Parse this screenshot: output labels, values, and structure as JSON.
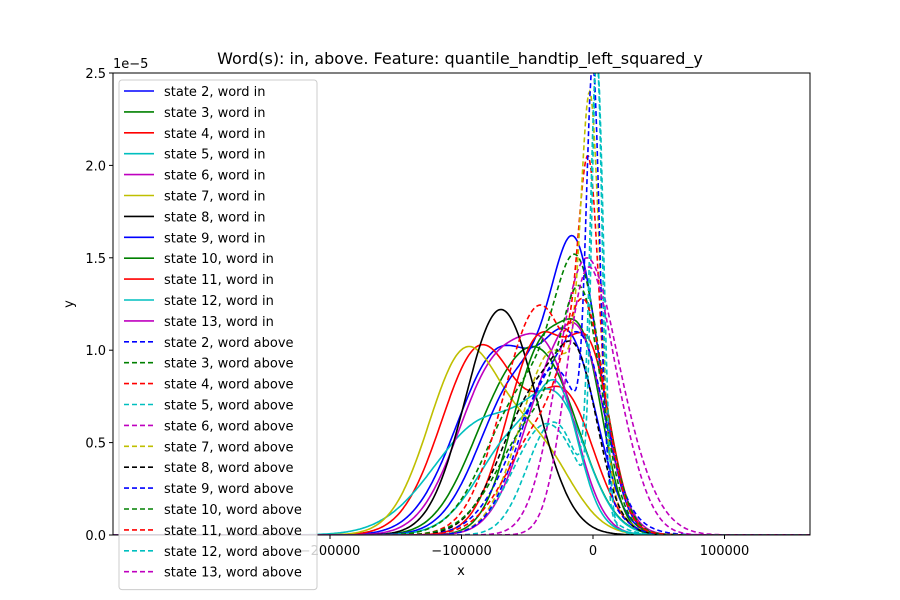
{
  "chart_data": {
    "type": "line",
    "title": "Word(s): in, above. Feature: quantile_handtip_left_squared_y",
    "xlabel": "x",
    "ylabel": "y",
    "y_offset_label": "1e−5",
    "xlim": [
      -365000,
      165000
    ],
    "ylim": [
      0,
      2.5
    ],
    "x_ticks": [
      -200000,
      -100000,
      0,
      100000
    ],
    "x_tick_labels": [
      "−200000",
      "−100000",
      "0",
      "100000"
    ],
    "y_ticks": [
      0,
      0.5,
      1.0,
      1.5,
      2.0,
      2.5
    ],
    "y_tick_labels": [
      "0.0",
      "0.5",
      "1.0",
      "1.5",
      "2.0",
      "2.5"
    ],
    "grid": false,
    "legend_position": "top-left",
    "series": [
      {
        "name": "state 2, word in",
        "color": "#0000ff",
        "dash": false,
        "components": [
          [
            0.55,
            -70000,
            33000
          ],
          [
            0.45,
            -15000,
            20000
          ]
        ],
        "peak": 1.12
      },
      {
        "name": "state 3, word in",
        "color": "#008000",
        "dash": false,
        "components": [
          [
            0.5,
            -68000,
            28000
          ],
          [
            0.5,
            -30000,
            25000
          ]
        ],
        "peak": 1.02
      },
      {
        "name": "state 4, word in",
        "color": "#ff0000",
        "dash": false,
        "components": [
          [
            0.6,
            -85000,
            30000
          ],
          [
            0.4,
            -20000,
            22000
          ]
        ],
        "peak": 1.03
      },
      {
        "name": "state 5, word in",
        "color": "#00bfbf",
        "dash": false,
        "components": [
          [
            0.55,
            -80000,
            40000
          ],
          [
            0.45,
            -25000,
            22000
          ]
        ],
        "peak": 0.79
      },
      {
        "name": "state 6, word in",
        "color": "#bf00bf",
        "dash": false,
        "components": [
          [
            0.6,
            -72000,
            30000
          ],
          [
            0.4,
            -30000,
            20000
          ]
        ],
        "peak": 1.09
      },
      {
        "name": "state 7, word in",
        "color": "#bfbf00",
        "dash": false,
        "components": [
          [
            0.7,
            -97000,
            28000
          ],
          [
            0.3,
            -40000,
            25000
          ]
        ],
        "peak": 1.02
      },
      {
        "name": "state 8, word in",
        "color": "#000000",
        "dash": false,
        "components": [
          [
            1.0,
            -70000,
            27000
          ]
        ],
        "peak": 1.22
      },
      {
        "name": "state 9, word in",
        "color": "#0000ff",
        "dash": false,
        "components": [
          [
            0.6,
            -12000,
            18000
          ],
          [
            0.4,
            -55000,
            30000
          ]
        ],
        "peak": 1.62
      },
      {
        "name": "state 10, word in",
        "color": "#008000",
        "dash": false,
        "components": [
          [
            0.6,
            -38000,
            23000
          ],
          [
            0.4,
            -5000,
            15000
          ]
        ],
        "peak": 1.17
      },
      {
        "name": "state 11, word in",
        "color": "#ff0000",
        "dash": false,
        "components": [
          [
            0.6,
            -40000,
            25000
          ],
          [
            0.4,
            0,
            15000
          ]
        ],
        "peak": 1.1
      },
      {
        "name": "state 12, word in",
        "color": "#00bfbf",
        "dash": false,
        "components": [
          [
            0.55,
            -55000,
            30000
          ],
          [
            0.45,
            -25000,
            15000
          ]
        ],
        "peak": 0.84
      },
      {
        "name": "state 13, word in",
        "color": "#bf00bf",
        "dash": false,
        "components": [
          [
            0.6,
            -30000,
            25000
          ],
          [
            0.4,
            -5000,
            18000
          ]
        ],
        "peak": 1.15
      },
      {
        "name": "state 2, word above",
        "color": "#0000ff",
        "dash": true,
        "components": [
          [
            0.65,
            -30000,
            30000
          ],
          [
            0.35,
            -5000,
            15000
          ]
        ],
        "peak": 1.1
      },
      {
        "name": "state 3, word above",
        "color": "#008000",
        "dash": true,
        "components": [
          [
            0.6,
            -10000,
            18000
          ],
          [
            0.4,
            -50000,
            30000
          ]
        ],
        "peak": 1.52
      },
      {
        "name": "state 4, word above",
        "color": "#ff0000",
        "dash": true,
        "components": [
          [
            0.55,
            -3000,
            8000
          ],
          [
            0.45,
            -40000,
            28000
          ]
        ],
        "peak": 2.05
      },
      {
        "name": "state 5, word above",
        "color": "#00bfbf",
        "dash": true,
        "components": [
          [
            0.8,
            3000,
            4000
          ],
          [
            0.2,
            -35000,
            25000
          ]
        ],
        "peak": 2.6
      },
      {
        "name": "state 6, word above",
        "color": "#bf00bf",
        "dash": true,
        "components": [
          [
            0.6,
            -10000,
            20000
          ],
          [
            0.4,
            10000,
            25000
          ]
        ],
        "peak": 1.5
      },
      {
        "name": "state 7, word above",
        "color": "#bfbf00",
        "dash": true,
        "components": [
          [
            0.65,
            -2000,
            7000
          ],
          [
            0.35,
            -30000,
            25000
          ]
        ],
        "peak": 2.4
      },
      {
        "name": "state 8, word above",
        "color": "#000000",
        "dash": true,
        "components": [
          [
            0.6,
            -40000,
            28000
          ],
          [
            0.4,
            -10000,
            15000
          ]
        ],
        "peak": 1.05
      },
      {
        "name": "state 9, word above",
        "color": "#0000ff",
        "dash": true,
        "components": [
          [
            0.7,
            0,
            5000
          ],
          [
            0.3,
            -30000,
            25000
          ]
        ],
        "peak": 2.55
      },
      {
        "name": "state 10, word above",
        "color": "#008000",
        "dash": true,
        "components": [
          [
            0.6,
            -8000,
            15000
          ],
          [
            0.4,
            -40000,
            30000
          ]
        ],
        "peak": 1.35
      },
      {
        "name": "state 11, word above",
        "color": "#ff0000",
        "dash": true,
        "components": [
          [
            0.6,
            -5000,
            15000
          ],
          [
            0.4,
            -35000,
            28000
          ]
        ],
        "peak": 1.28
      },
      {
        "name": "state 12, word above",
        "color": "#00bfbf",
        "dash": true,
        "components": [
          [
            0.8,
            3000,
            5000
          ],
          [
            0.2,
            -30000,
            20000
          ]
        ],
        "peak": 2.6
      },
      {
        "name": "state 13, word above",
        "color": "#bf00bf",
        "dash": true,
        "components": [
          [
            0.55,
            -8000,
            15000
          ],
          [
            0.45,
            10000,
            20000
          ]
        ],
        "peak": 1.45
      }
    ]
  }
}
